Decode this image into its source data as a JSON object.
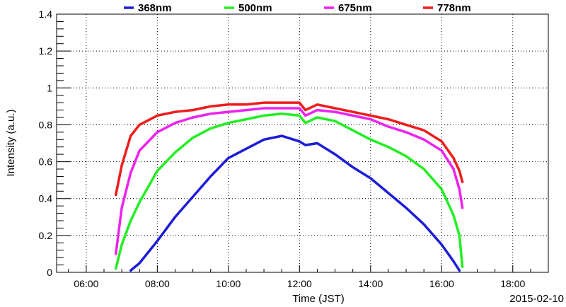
{
  "chart_data": {
    "type": "line",
    "title": "",
    "xlabel": "Time (JST)",
    "ylabel": "Intensity (a.u.)",
    "date_label": "2015-02-10",
    "xlim": [
      "05:10",
      "19:00"
    ],
    "ylim": [
      0,
      1.4
    ],
    "grid": true,
    "legend_position": "top",
    "x_ticks": [
      "06:00",
      "08:00",
      "10:00",
      "12:00",
      "14:00",
      "16:00",
      "18:00"
    ],
    "y_ticks": [
      "0",
      "0.2",
      "0.4",
      "0.6",
      "0.8",
      "1",
      "1.2",
      "1.4"
    ],
    "x": [
      "06:50",
      "07:00",
      "07:15",
      "07:30",
      "08:00",
      "08:30",
      "09:00",
      "09:30",
      "10:00",
      "10:30",
      "11:00",
      "11:30",
      "12:00",
      "12:10",
      "12:30",
      "13:00",
      "13:30",
      "14:00",
      "14:30",
      "15:00",
      "15:30",
      "16:00",
      "16:20",
      "16:30",
      "16:35"
    ],
    "series": [
      {
        "name": "368nm",
        "color": "#1c1cd8",
        "values": [
          null,
          null,
          0.01,
          0.05,
          0.17,
          0.3,
          0.41,
          0.52,
          0.62,
          0.67,
          0.72,
          0.74,
          0.71,
          0.69,
          0.7,
          0.64,
          0.57,
          0.51,
          0.43,
          0.35,
          0.26,
          0.15,
          0.06,
          0.01,
          null
        ]
      },
      {
        "name": "500nm",
        "color": "#22ee22",
        "values": [
          0.02,
          0.15,
          0.28,
          0.38,
          0.55,
          0.65,
          0.73,
          0.78,
          0.81,
          0.83,
          0.85,
          0.86,
          0.85,
          0.81,
          0.84,
          0.82,
          0.77,
          0.72,
          0.68,
          0.63,
          0.56,
          0.45,
          0.31,
          0.2,
          0.03
        ]
      },
      {
        "name": "675nm",
        "color": "#ee22ee",
        "values": [
          0.1,
          0.35,
          0.54,
          0.66,
          0.76,
          0.81,
          0.84,
          0.86,
          0.87,
          0.88,
          0.89,
          0.89,
          0.89,
          0.85,
          0.88,
          0.87,
          0.85,
          0.83,
          0.79,
          0.76,
          0.72,
          0.66,
          0.56,
          0.45,
          0.35
        ]
      },
      {
        "name": "778nm",
        "color": "#ee1c1c",
        "values": [
          0.42,
          0.58,
          0.74,
          0.8,
          0.85,
          0.87,
          0.88,
          0.9,
          0.91,
          0.91,
          0.92,
          0.92,
          0.92,
          0.88,
          0.91,
          0.89,
          0.87,
          0.85,
          0.83,
          0.8,
          0.77,
          0.71,
          0.62,
          0.55,
          0.49
        ]
      }
    ]
  }
}
